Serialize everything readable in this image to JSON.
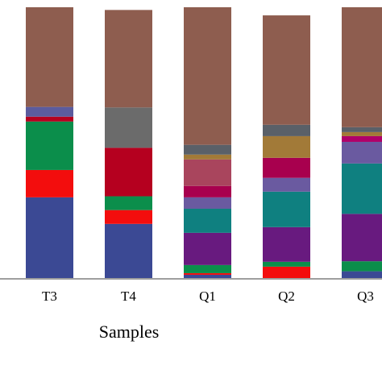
{
  "chart_data": {
    "type": "bar",
    "stacked": true,
    "percent": true,
    "xlabel": "Samples",
    "ylim": [
      0,
      100
    ],
    "categories": [
      "T3",
      "T4",
      "Q1",
      "Q2",
      "Q3"
    ],
    "series": [
      {
        "color": "#3b4994",
        "values": [
          29.8,
          20.0,
          1.2,
          0.0,
          2.5
        ]
      },
      {
        "color": "#f30d0d",
        "values": [
          10.1,
          5.1,
          0.6,
          4.2,
          0.0
        ]
      },
      {
        "color": "#0b8e4b",
        "values": [
          17.9,
          5.1,
          3.0,
          1.8,
          3.7
        ]
      },
      {
        "color": "#b5001f",
        "values": [
          1.8,
          17.9,
          0.0,
          0.0,
          0.0
        ]
      },
      {
        "color": "#5b5b9e",
        "values": [
          3.6,
          0.0,
          0.0,
          0.0,
          0.0
        ]
      },
      {
        "color": "#681a7f",
        "values": [
          0.0,
          0.0,
          11.9,
          12.8,
          17.5
        ]
      },
      {
        "color": "#0f8080",
        "values": [
          0.0,
          0.0,
          8.9,
          13.1,
          18.6
        ]
      },
      {
        "color": "#6a5aa0",
        "values": [
          0.0,
          0.0,
          4.2,
          5.1,
          0.0
        ]
      },
      {
        "color": "#a8004e",
        "values": [
          0.0,
          0.0,
          4.2,
          7.4,
          0.0
        ]
      },
      {
        "color": "#a9455d",
        "values": [
          0.0,
          0.0,
          9.8,
          0.0,
          0.0
        ]
      },
      {
        "color": "#6a5aa0",
        "values": [
          0.0,
          0.0,
          0.0,
          0.0,
          8.0
        ]
      },
      {
        "color": "#b0006a",
        "values": [
          0.0,
          0.0,
          0.0,
          0.0,
          2.1
        ]
      },
      {
        "color": "#a27a38",
        "values": [
          0.0,
          0.0,
          1.8,
          8.0,
          1.5
        ]
      },
      {
        "color": "#9a6f44",
        "values": [
          0.0,
          0.0,
          0.0,
          0.0,
          0.0
        ]
      },
      {
        "color": "#6b6b6b",
        "values": [
          0.0,
          14.9,
          0.0,
          0.0,
          0.0
        ]
      },
      {
        "color": "#5a6068",
        "values": [
          0.0,
          0.0,
          3.6,
          4.2,
          1.8
        ]
      },
      {
        "color": "#8e5d4f",
        "values": [
          36.8,
          36.0,
          50.8,
          40.4,
          44.3
        ]
      }
    ]
  }
}
